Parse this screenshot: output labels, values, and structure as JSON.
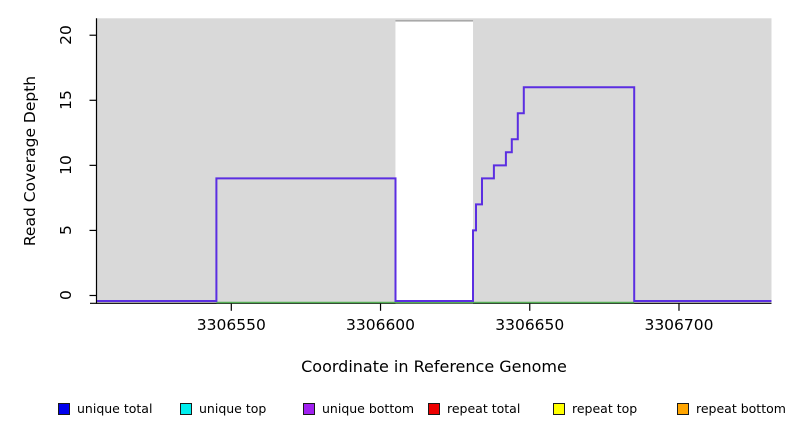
{
  "chart_data": {
    "type": "line",
    "subtype": "step-coverage",
    "title": "",
    "xlabel": "Coordinate in Reference Genome",
    "ylabel": "Read Coverage Depth",
    "xlim": [
      3306505,
      3306731
    ],
    "ylim": [
      -0.6,
      21.3
    ],
    "x_ticks": [
      3306550,
      3306600,
      3306650,
      3306700
    ],
    "y_ticks": [
      0,
      5,
      10,
      15,
      20
    ],
    "grid": false,
    "panel_background": "#d9d9d9",
    "gap_region": {
      "x_start": 3306605,
      "x_end": 3306631,
      "top_value": 21.1,
      "fill": "#ffffff",
      "border": "#999999"
    },
    "series": [
      {
        "name": "zero-depth overlapping series line",
        "color": "#55b055",
        "line_width": 1.6,
        "step_points": [
          [
            3306545,
            0
          ],
          [
            3306685,
            0
          ]
        ],
        "x_end": 3306685
      },
      {
        "name": "unique coverage depth",
        "color": "#5b2ee1",
        "line_width": 2,
        "step_points": [
          [
            3306505,
            0
          ],
          [
            3306545,
            9
          ],
          [
            3306605,
            0
          ],
          [
            3306631,
            5
          ],
          [
            3306632,
            7
          ],
          [
            3306634,
            9
          ],
          [
            3306638,
            10
          ],
          [
            3306642,
            11
          ],
          [
            3306644,
            12
          ],
          [
            3306646,
            14
          ],
          [
            3306648,
            16
          ],
          [
            3306685,
            0
          ]
        ],
        "x_end": 3306731
      }
    ],
    "legend": [
      {
        "label": "unique total",
        "color": "#0000ee"
      },
      {
        "label": "unique top",
        "color": "#00eeee"
      },
      {
        "label": "unique bottom",
        "color": "#a020f0"
      },
      {
        "label": "repeat total",
        "color": "#ee0000"
      },
      {
        "label": "repeat top",
        "color": "#ffff00"
      },
      {
        "label": "repeat bottom",
        "color": "#ffa500"
      }
    ],
    "legend_position": "bottom"
  }
}
